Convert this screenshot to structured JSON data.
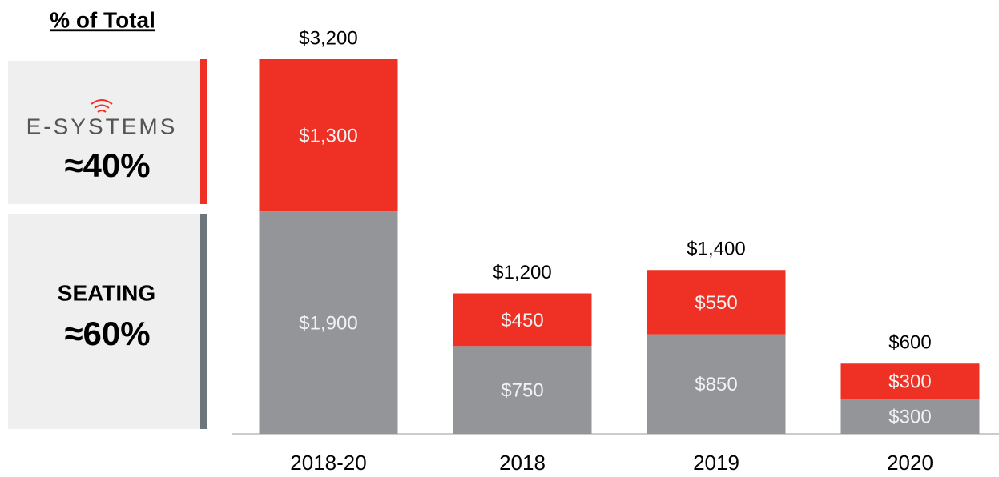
{
  "chart_data": {
    "type": "stacked_bar",
    "categories": [
      "2018-20",
      "2018",
      "2019",
      "2020"
    ],
    "series": [
      {
        "name": "SEATING",
        "color": "#939598",
        "values": [
          1900,
          750,
          850,
          300
        ],
        "value_labels": [
          "$1,900",
          "$750",
          "$850",
          "$300"
        ]
      },
      {
        "name": "E-SYSTEMS",
        "color": "#ee3124",
        "values": [
          1300,
          450,
          550,
          300
        ],
        "value_labels": [
          "$1,300",
          "$450",
          "$550",
          "$300"
        ]
      }
    ],
    "totals": {
      "values": [
        3200,
        1200,
        1400,
        600
      ],
      "value_labels": [
        "$3,200",
        "$1,200",
        "$1,400",
        "$600"
      ]
    },
    "panel": {
      "title": "% of Total",
      "shares": [
        "≈60%",
        "≈40%"
      ]
    }
  }
}
